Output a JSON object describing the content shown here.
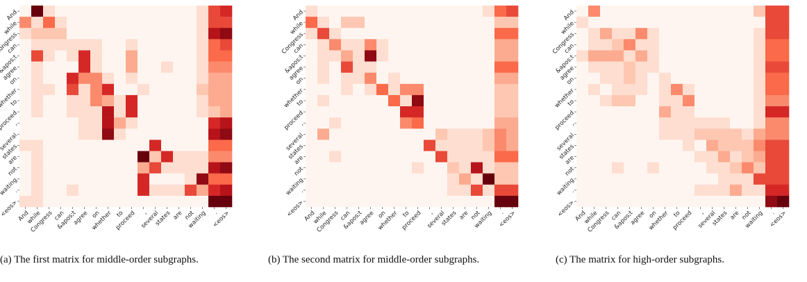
{
  "chart_data": [
    {
      "type": "heatmap",
      "colormap": "Reds",
      "caption": "(a) The first matrix for middle-order subgraphs.",
      "xcategories": [
        "And",
        "while",
        "Congress",
        "can",
        "&apos;t",
        "agree",
        "on",
        "whether",
        "to",
        "proceed",
        ",",
        "several",
        "states",
        "are",
        "not",
        "waiting",
        ".",
        "<eos>"
      ],
      "ycategories": [
        "And",
        "while",
        "Congress",
        "can",
        "&apos;t",
        "agree",
        "on",
        "whether",
        "to",
        "proceed",
        ",",
        "several",
        "states",
        "are",
        "not",
        "waiting",
        ".",
        "<eos>"
      ],
      "values": [
        [
          0,
          1,
          0.1,
          0,
          0,
          0,
          0,
          0,
          0,
          0,
          0,
          0,
          0,
          0,
          0,
          0.1,
          0.6,
          0.7
        ],
        [
          0.4,
          0.1,
          0.5,
          0.1,
          0,
          0,
          0,
          0,
          0,
          0,
          0,
          0,
          0,
          0,
          0,
          0.1,
          0.6,
          0.6
        ],
        [
          0.1,
          0.2,
          0.2,
          0.2,
          0,
          0,
          0,
          0,
          0,
          0,
          0,
          0,
          0,
          0,
          0,
          0.1,
          0.8,
          0.9
        ],
        [
          0,
          0.1,
          0.1,
          0.1,
          0.1,
          0.1,
          0.1,
          0,
          0,
          0.1,
          0,
          0,
          0,
          0,
          0,
          0.1,
          0.5,
          0.6
        ],
        [
          0,
          0.6,
          0.1,
          0,
          0.1,
          0.7,
          0.1,
          0,
          0,
          0.3,
          0,
          0,
          0,
          0,
          0,
          0.1,
          0.5,
          0.5
        ],
        [
          0,
          0.1,
          0,
          0,
          0,
          0.7,
          0.1,
          0,
          0,
          0.3,
          0,
          0,
          0.1,
          0,
          0,
          0.1,
          0.4,
          0.4
        ],
        [
          0,
          0.1,
          0,
          0,
          0.7,
          0.4,
          0.4,
          0.1,
          0,
          0.1,
          0,
          0,
          0,
          0,
          0,
          0.1,
          0.3,
          0.3
        ],
        [
          0,
          0.1,
          0.1,
          0,
          0.6,
          0.1,
          0.4,
          0.7,
          0,
          0,
          0.1,
          0,
          0,
          0,
          0,
          0.2,
          0.3,
          0.3
        ],
        [
          0,
          0.1,
          0,
          0,
          0.1,
          0.1,
          0.4,
          0.3,
          0.1,
          0.7,
          0,
          0,
          0,
          0,
          0,
          0.1,
          0.3,
          0.3
        ],
        [
          0,
          0.1,
          0,
          0,
          0.1,
          0.1,
          0.1,
          0.8,
          0.1,
          0.7,
          0,
          0,
          0,
          0,
          0,
          0.1,
          0.2,
          0.3
        ],
        [
          0,
          0,
          0,
          0,
          0,
          0.1,
          0.1,
          0.8,
          0.3,
          0.1,
          0,
          0,
          0,
          0,
          0,
          0,
          0.7,
          0.8
        ],
        [
          0,
          0,
          0,
          0,
          0,
          0.1,
          0.1,
          0.9,
          0.1,
          0,
          0,
          0,
          0,
          0,
          0,
          0,
          0.8,
          0.9
        ],
        [
          0.1,
          0.1,
          0,
          0,
          0,
          0,
          0,
          0,
          0,
          0,
          0,
          0.7,
          0,
          0,
          0,
          0,
          0.5,
          0.5
        ],
        [
          0,
          0.1,
          0,
          0,
          0,
          0,
          0,
          0,
          0,
          0,
          1,
          0.2,
          0.7,
          0.1,
          0.1,
          0.1,
          0.4,
          0.4
        ],
        [
          0,
          0.1,
          0,
          0,
          0,
          0,
          0,
          0,
          0,
          0,
          0.3,
          0.6,
          0.1,
          0.1,
          0.1,
          0.1,
          0.8,
          0.9
        ],
        [
          0,
          0.1,
          0,
          0,
          0,
          0,
          0,
          0,
          0,
          0,
          0.7,
          0,
          0,
          0,
          0.1,
          0.9,
          0.5,
          0.5
        ],
        [
          0,
          0.1,
          0,
          0,
          0.1,
          0,
          0,
          0,
          0,
          0,
          0.7,
          0.1,
          0.1,
          0.1,
          0.6,
          0.3,
          0.7,
          0.8
        ],
        [
          0.1,
          0.1,
          0,
          0,
          0,
          0,
          0,
          0,
          0,
          0,
          0,
          0,
          0,
          0,
          0,
          0,
          1,
          1
        ]
      ]
    },
    {
      "type": "heatmap",
      "colormap": "Reds",
      "caption": "(b) The second matrix for middle-order subgraphs.",
      "xcategories": [
        "And",
        "while",
        "Congress",
        "can",
        "&apos;t",
        "agree",
        "on",
        "whether",
        "to",
        "proceed",
        ",",
        "several",
        "states",
        "are",
        "not",
        "waiting",
        ".",
        "<eos>"
      ],
      "ycategories": [
        "And",
        "while",
        "Congress",
        "can",
        "&apos;t",
        "agree",
        "on",
        "whether",
        "to",
        "proceed",
        ",",
        "several",
        "states",
        "are",
        "not",
        "waiting",
        ".",
        "<eos>"
      ],
      "values": [
        [
          0.1,
          0,
          0,
          0,
          0,
          0,
          0,
          0,
          0,
          0,
          0,
          0,
          0,
          0,
          0,
          0.1,
          0.5,
          0.6
        ],
        [
          0.5,
          0.1,
          0,
          0.2,
          0.2,
          0,
          0,
          0,
          0,
          0,
          0,
          0,
          0,
          0,
          0,
          0,
          0.2,
          0.2
        ],
        [
          0.1,
          0.6,
          0.1,
          0,
          0,
          0,
          0,
          0,
          0,
          0,
          0,
          0,
          0,
          0,
          0,
          0,
          0.5,
          0.5
        ],
        [
          0,
          0.1,
          0.4,
          0.1,
          0.1,
          0.4,
          0.1,
          0,
          0,
          0,
          0,
          0,
          0,
          0,
          0,
          0,
          0.3,
          0.3
        ],
        [
          0,
          0.1,
          0.1,
          0.3,
          0.1,
          0.9,
          0.1,
          0,
          0,
          0,
          0,
          0,
          0,
          0,
          0,
          0,
          0.3,
          0.3
        ],
        [
          0,
          0.1,
          0,
          0.6,
          0.1,
          0.1,
          0,
          0,
          0,
          0,
          0,
          0,
          0,
          0,
          0,
          0,
          0.5,
          0.5
        ],
        [
          0,
          0.1,
          0,
          0.1,
          0.1,
          0.4,
          0,
          0.1,
          0,
          0,
          0,
          0,
          0,
          0,
          0,
          0,
          0.3,
          0.3
        ],
        [
          0,
          0,
          0,
          0.1,
          0,
          0.1,
          0.5,
          0.1,
          0.4,
          0.4,
          0,
          0,
          0,
          0,
          0,
          0,
          0.2,
          0.2
        ],
        [
          0,
          0.1,
          0,
          0,
          0,
          0,
          0,
          0.5,
          0.1,
          0.9,
          0,
          0,
          0,
          0,
          0,
          0,
          0.2,
          0.2
        ],
        [
          0,
          0,
          0,
          0,
          0,
          0,
          0,
          0,
          0.7,
          0.7,
          0,
          0,
          0,
          0,
          0,
          0,
          0.2,
          0.2
        ],
        [
          0,
          0,
          0.1,
          0,
          0,
          0,
          0,
          0,
          0.4,
          0.5,
          0,
          0,
          0,
          0,
          0,
          0,
          0.3,
          0.3
        ],
        [
          0,
          0.3,
          0,
          0,
          0,
          0,
          0,
          0,
          0,
          0,
          0,
          0.2,
          0.1,
          0.1,
          0.1,
          0.2,
          0.4,
          0.3
        ],
        [
          0,
          0,
          0,
          0,
          0,
          0,
          0,
          0,
          0,
          0,
          0.6,
          0.1,
          0.1,
          0.1,
          0.1,
          0.2,
          0.4,
          0.3
        ],
        [
          0,
          0,
          0.1,
          0,
          0,
          0,
          0,
          0,
          0,
          0,
          0,
          0.6,
          0.1,
          0.1,
          0.1,
          0.1,
          0.5,
          0.5
        ],
        [
          0,
          0,
          0,
          0,
          0,
          0,
          0,
          0,
          0,
          0.1,
          0,
          0,
          0.2,
          0.1,
          0.8,
          0.1,
          0.2,
          0.2
        ],
        [
          0,
          0,
          0,
          0,
          0,
          0,
          0,
          0,
          0,
          0,
          0,
          0,
          0.1,
          0.3,
          0.1,
          1,
          0.2,
          0.2
        ],
        [
          0,
          0,
          0,
          0,
          0,
          0,
          0,
          0,
          0,
          0,
          0,
          0,
          0.1,
          0.1,
          0.6,
          0.1,
          0.6,
          0.6
        ],
        [
          0,
          0,
          0,
          0,
          0,
          0,
          0,
          0,
          0,
          0,
          0,
          0,
          0,
          0,
          0,
          0,
          1,
          1
        ]
      ]
    },
    {
      "type": "heatmap",
      "colormap": "Reds",
      "caption": "(c) The matrix for high-order subgraphs.",
      "xcategories": [
        "And",
        "while",
        "Congress",
        "can",
        "&apos;t",
        "agree",
        "on",
        "whether",
        "to",
        "proceed",
        ",",
        "several",
        "states",
        "are",
        "not",
        "waiting",
        ".",
        "<eos>"
      ],
      "ycategories": [
        "And",
        "while",
        "Congress",
        "can",
        "&apos;t",
        "agree",
        "on",
        "whether",
        "to",
        "proceed",
        ",",
        "several",
        "states",
        "are",
        "not",
        "waiting",
        ".",
        "<eos>"
      ],
      "values": [
        [
          0,
          0.4,
          0,
          0,
          0,
          0,
          0,
          0,
          0,
          0,
          0,
          0,
          0,
          0,
          0,
          0.2,
          0.6,
          0.6
        ],
        [
          0.1,
          0,
          0,
          0,
          0,
          0,
          0,
          0,
          0,
          0,
          0,
          0,
          0,
          0,
          0,
          0,
          0.6,
          0.6
        ],
        [
          0,
          0.1,
          0.3,
          0.1,
          0.1,
          0.4,
          0.1,
          0,
          0,
          0,
          0,
          0,
          0,
          0,
          0,
          0.1,
          0.6,
          0.6
        ],
        [
          0,
          0.1,
          0.1,
          0.2,
          0.4,
          0.1,
          0.1,
          0,
          0,
          0,
          0,
          0,
          0,
          0,
          0,
          0.1,
          0.5,
          0.5
        ],
        [
          0.1,
          0.3,
          0.3,
          0.3,
          0.1,
          0.3,
          0.1,
          0,
          0,
          0,
          0,
          0,
          0,
          0,
          0,
          0.1,
          0.5,
          0.5
        ],
        [
          0,
          0.1,
          0.1,
          0.1,
          0.2,
          0.1,
          0.1,
          0,
          0,
          0,
          0,
          0,
          0,
          0,
          0,
          0.1,
          0.6,
          0.6
        ],
        [
          0,
          0,
          0.1,
          0.1,
          0.2,
          0.1,
          0,
          0.1,
          0,
          0,
          0,
          0,
          0,
          0,
          0,
          0.1,
          0.5,
          0.5
        ],
        [
          0,
          0.1,
          0,
          0.1,
          0.1,
          0.1,
          0,
          0.1,
          0.4,
          0.1,
          0,
          0,
          0,
          0,
          0,
          0.1,
          0.5,
          0.5
        ],
        [
          0,
          0,
          0.1,
          0.2,
          0.2,
          0,
          0,
          0.1,
          0.1,
          0.4,
          0,
          0,
          0,
          0,
          0,
          0.1,
          0.4,
          0.4
        ],
        [
          0,
          0,
          0,
          0,
          0,
          0,
          0,
          0.3,
          0.1,
          0.1,
          0,
          0,
          0,
          0,
          0,
          0.1,
          0.7,
          0.7
        ],
        [
          0,
          0,
          0,
          0,
          0,
          0,
          0,
          0.1,
          0.1,
          0.1,
          0.1,
          0.1,
          0.1,
          0,
          0,
          0.1,
          0.4,
          0.4
        ],
        [
          0,
          0,
          0,
          0,
          0,
          0,
          0,
          0.1,
          0.1,
          0.1,
          0.2,
          0.2,
          0.2,
          0.2,
          0.1,
          0.3,
          0.4,
          0.4
        ],
        [
          0,
          0,
          0,
          0,
          0,
          0,
          0,
          0,
          0,
          0.1,
          0,
          0.3,
          0.2,
          0.2,
          0.2,
          0.4,
          0.6,
          0.6
        ],
        [
          0,
          0,
          0,
          0,
          0,
          0,
          0,
          0,
          0,
          0,
          0.1,
          0.1,
          0.3,
          0.1,
          0.2,
          0.3,
          0.6,
          0.6
        ],
        [
          0,
          0,
          0,
          0.1,
          0,
          0,
          0.1,
          0,
          0,
          0,
          0,
          0.1,
          0.1,
          0.2,
          0.4,
          0.2,
          0.6,
          0.6
        ],
        [
          0,
          0,
          0,
          0,
          0,
          0,
          0,
          0,
          0,
          0,
          0,
          0,
          0.1,
          0.1,
          0.1,
          0.6,
          0.6,
          0.6
        ],
        [
          0,
          0,
          0,
          0,
          0,
          0,
          0,
          0,
          0,
          0,
          0.1,
          0.1,
          0.1,
          0.3,
          0.1,
          0.1,
          0.7,
          0.7
        ],
        [
          0,
          0,
          0,
          0,
          0,
          0,
          0,
          0,
          0,
          0,
          0,
          0,
          0,
          0,
          0,
          0,
          0.9,
          1
        ]
      ]
    }
  ]
}
